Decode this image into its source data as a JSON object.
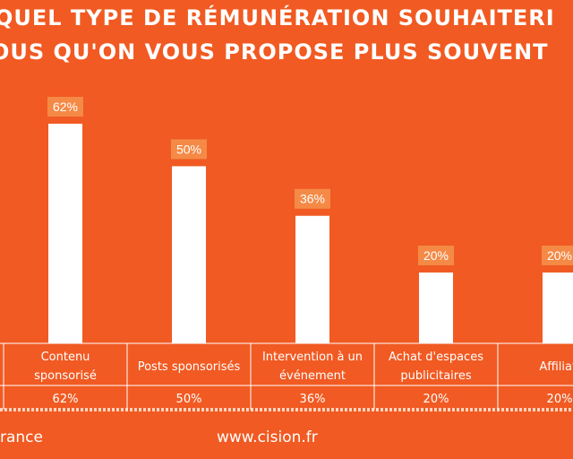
{
  "title": {
    "line1": "QUEL TYPE DE RÉMUNÉRATION SOUHAITERI",
    "line2": "OUS QU'ON VOUS PROPOSE PLUS SOUVENT"
  },
  "chart_data": {
    "type": "bar",
    "categories": [
      [
        "Contenu",
        "sponsorisé"
      ],
      [
        "Posts sponsorisés"
      ],
      [
        "Intervention à un",
        "événement"
      ],
      [
        "Achat d'espaces",
        "publicitaires"
      ],
      [
        "Affiliati"
      ]
    ],
    "values": [
      62,
      50,
      36,
      20,
      20
    ],
    "value_labels": [
      "62%",
      "50%",
      "36%",
      "20%",
      "20%"
    ],
    "table_values": [
      "62%",
      "50%",
      "36%",
      "20%",
      "20%"
    ],
    "ylim": [
      0,
      70
    ],
    "grid": false,
    "legend": "none",
    "colors": {
      "background": "#f15a22",
      "bar": "#ffffff",
      "label_box": "#f48a46",
      "text": "#ffffff"
    }
  },
  "footer": {
    "left_text": "rance",
    "center_text": "www.cision.fr"
  }
}
